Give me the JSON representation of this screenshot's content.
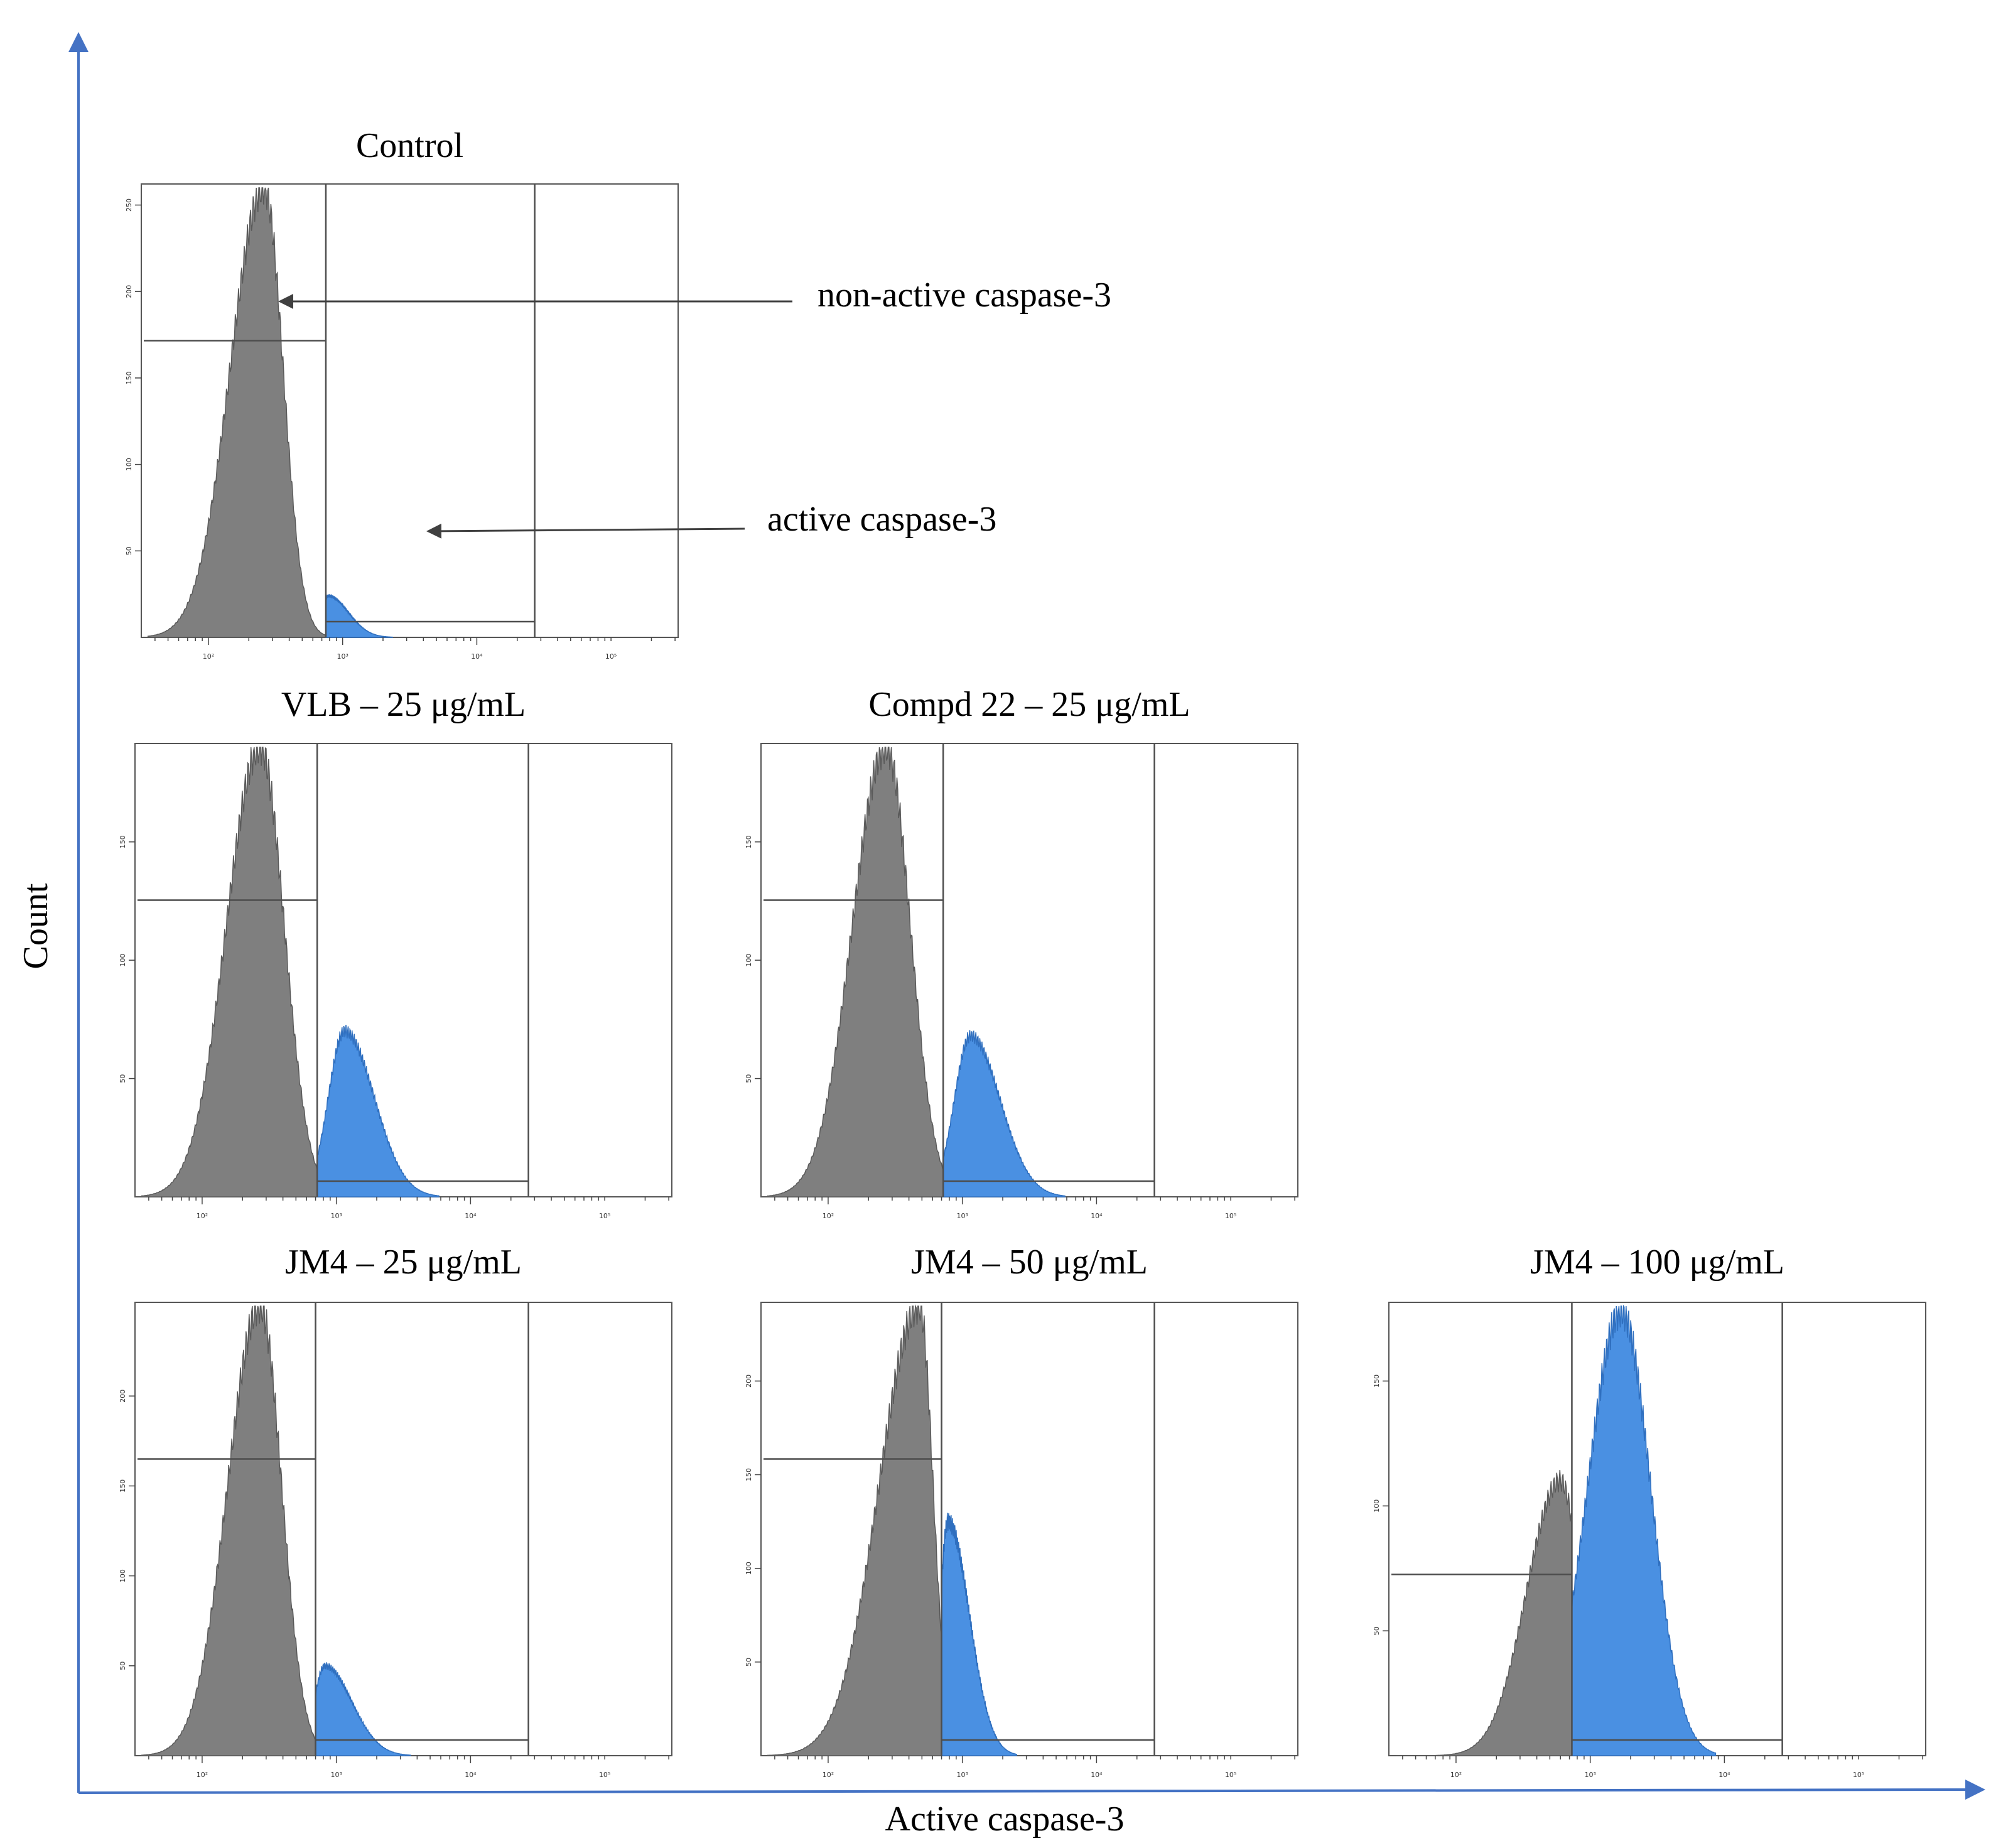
{
  "figure": {
    "y_axis_label": "Count",
    "x_axis_label": "Active caspase-3",
    "annotations": [
      {
        "text": "non-active caspase-3",
        "target": "control peak (gray)"
      },
      {
        "text": "active caspase-3",
        "target": "active gate region (blue)"
      }
    ],
    "colors": {
      "axis_arrow": "#4472C4",
      "nonactive": "#7f7f7f",
      "active": "#4a90e2",
      "gate": "#4d4d4d"
    }
  },
  "chart_data": [
    {
      "type": "area",
      "title": "Control",
      "xscale": "log",
      "xlim": [
        31.6,
        316228
      ],
      "ylim": [
        0,
        260
      ],
      "x_ticks": [
        "10²",
        "10³",
        "10⁴",
        "10⁵"
      ],
      "y_ticks": [
        "50",
        "100",
        "150",
        "200",
        "250"
      ],
      "gate_threshold": 750,
      "gate_upper": 27000,
      "series": [
        {
          "name": "non-active caspase-3",
          "peak_x": 260,
          "peak_count": 260,
          "sigma_left": 0.25,
          "sigma_right": 0.14
        },
        {
          "name": "active caspase-3",
          "peak_x": 780,
          "peak_count": 24,
          "sigma_left": 0.05,
          "sigma_right": 0.15
        }
      ]
    },
    {
      "type": "area",
      "title": "VLB – 25 μg/mL",
      "xscale": "log",
      "xlim": [
        31.6,
        316228
      ],
      "ylim": [
        0,
        190
      ],
      "x_ticks": [
        "10²",
        "10³",
        "10⁴",
        "10⁵"
      ],
      "y_ticks": [
        "50",
        "100",
        "150"
      ],
      "gate_threshold": 720,
      "gate_upper": 27000,
      "series": [
        {
          "name": "non-active caspase-3",
          "peak_x": 270,
          "peak_count": 190,
          "sigma_left": 0.25,
          "sigma_right": 0.18
        },
        {
          "name": "active caspase-3",
          "peak_x": 1150,
          "peak_count": 70,
          "sigma_left": 0.12,
          "sigma_right": 0.22
        }
      ]
    },
    {
      "type": "area",
      "title": "Compd 22 – 25 μg/mL",
      "xscale": "log",
      "xlim": [
        31.6,
        316228
      ],
      "ylim": [
        0,
        190
      ],
      "x_ticks": [
        "10²",
        "10³",
        "10⁴",
        "10⁵"
      ],
      "y_ticks": [
        "50",
        "100",
        "150"
      ],
      "gate_threshold": 720,
      "gate_upper": 27000,
      "series": [
        {
          "name": "non-active caspase-3",
          "peak_x": 270,
          "peak_count": 190,
          "sigma_left": 0.25,
          "sigma_right": 0.18
        },
        {
          "name": "active caspase-3",
          "peak_x": 1150,
          "peak_count": 68,
          "sigma_left": 0.12,
          "sigma_right": 0.22
        }
      ]
    },
    {
      "type": "area",
      "title": "JM4 – 25 μg/mL",
      "xscale": "log",
      "xlim": [
        31.6,
        316228
      ],
      "ylim": [
        0,
        250
      ],
      "x_ticks": [
        "10²",
        "10³",
        "10⁴",
        "10⁵"
      ],
      "y_ticks": [
        "50",
        "100",
        "150",
        "200"
      ],
      "gate_threshold": 700,
      "gate_upper": 27000,
      "series": [
        {
          "name": "non-active caspase-3",
          "peak_x": 270,
          "peak_count": 250,
          "sigma_left": 0.24,
          "sigma_right": 0.16
        },
        {
          "name": "active caspase-3",
          "peak_x": 820,
          "peak_count": 50,
          "sigma_left": 0.08,
          "sigma_right": 0.2
        }
      ]
    },
    {
      "type": "area",
      "title": "JM4 – 50 μg/mL",
      "xscale": "log",
      "xlim": [
        31.6,
        316228
      ],
      "ylim": [
        0,
        240
      ],
      "x_ticks": [
        "10²",
        "10³",
        "10⁴",
        "10⁵"
      ],
      "y_ticks": [
        "50",
        "100",
        "150",
        "200"
      ],
      "gate_threshold": 700,
      "gate_upper": 27000,
      "series": [
        {
          "name": "non-active caspase-3",
          "peak_x": 480,
          "peak_count": 240,
          "sigma_left": 0.3,
          "sigma_right": 0.1
        },
        {
          "name": "active caspase-3",
          "peak_x": 780,
          "peak_count": 125,
          "sigma_left": 0.06,
          "sigma_right": 0.16
        }
      ]
    },
    {
      "type": "area",
      "title": "JM4 – 100 μg/mL",
      "xscale": "log",
      "xlim": [
        31.6,
        316228
      ],
      "ylim": [
        0,
        180
      ],
      "x_ticks": [
        "10²",
        "10³",
        "10⁴",
        "10⁵"
      ],
      "y_ticks": [
        "50",
        "100",
        "150"
      ],
      "gate_threshold": 730,
      "gate_upper": 27000,
      "series": [
        {
          "name": "non-active caspase-3",
          "peak_x": 600,
          "peak_count": 110,
          "sigma_left": 0.25,
          "sigma_right": 0.15
        },
        {
          "name": "active caspase-3",
          "peak_x": 1700,
          "peak_count": 178,
          "sigma_left": 0.25,
          "sigma_right": 0.22
        }
      ]
    }
  ]
}
